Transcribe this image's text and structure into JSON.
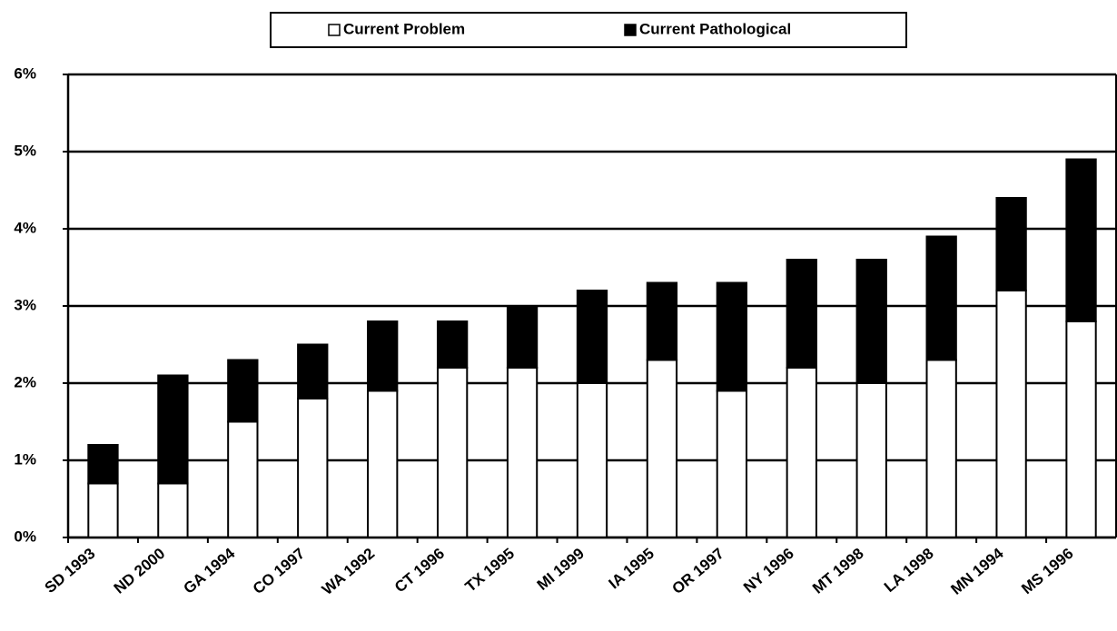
{
  "chart_data": {
    "type": "stacked_bar",
    "categories": [
      "SD 1993",
      "ND 2000",
      "GA 1994",
      "CO 1997",
      "WA 1992",
      "CT 1996",
      "TX 1995",
      "MI 1999",
      "IA 1995",
      "OR 1997",
      "NY 1996",
      "MT 1998",
      "LA 1998",
      "MN 1994",
      "MS 1996"
    ],
    "series": [
      {
        "name": "Current Problem",
        "color": "#ffffff",
        "values": [
          0.7,
          0.7,
          1.5,
          1.8,
          1.9,
          2.2,
          2.2,
          2.0,
          2.3,
          1.9,
          2.2,
          2.0,
          2.3,
          3.2,
          2.8
        ]
      },
      {
        "name": "Current Pathological",
        "color": "#000000",
        "values": [
          0.5,
          1.4,
          0.8,
          0.7,
          0.9,
          0.6,
          0.8,
          1.2,
          1.0,
          1.4,
          1.4,
          1.6,
          1.6,
          1.2,
          2.1
        ]
      }
    ],
    "ylim": [
      0,
      6
    ],
    "yticks": [
      {
        "value": 0,
        "label": "0%"
      },
      {
        "value": 1,
        "label": "1%"
      },
      {
        "value": 2,
        "label": "2%"
      },
      {
        "value": 3,
        "label": "3%"
      },
      {
        "value": 4,
        "label": "4%"
      },
      {
        "value": 5,
        "label": "5%"
      },
      {
        "value": 6,
        "label": "6%"
      }
    ],
    "grid": true,
    "legend": "top"
  }
}
